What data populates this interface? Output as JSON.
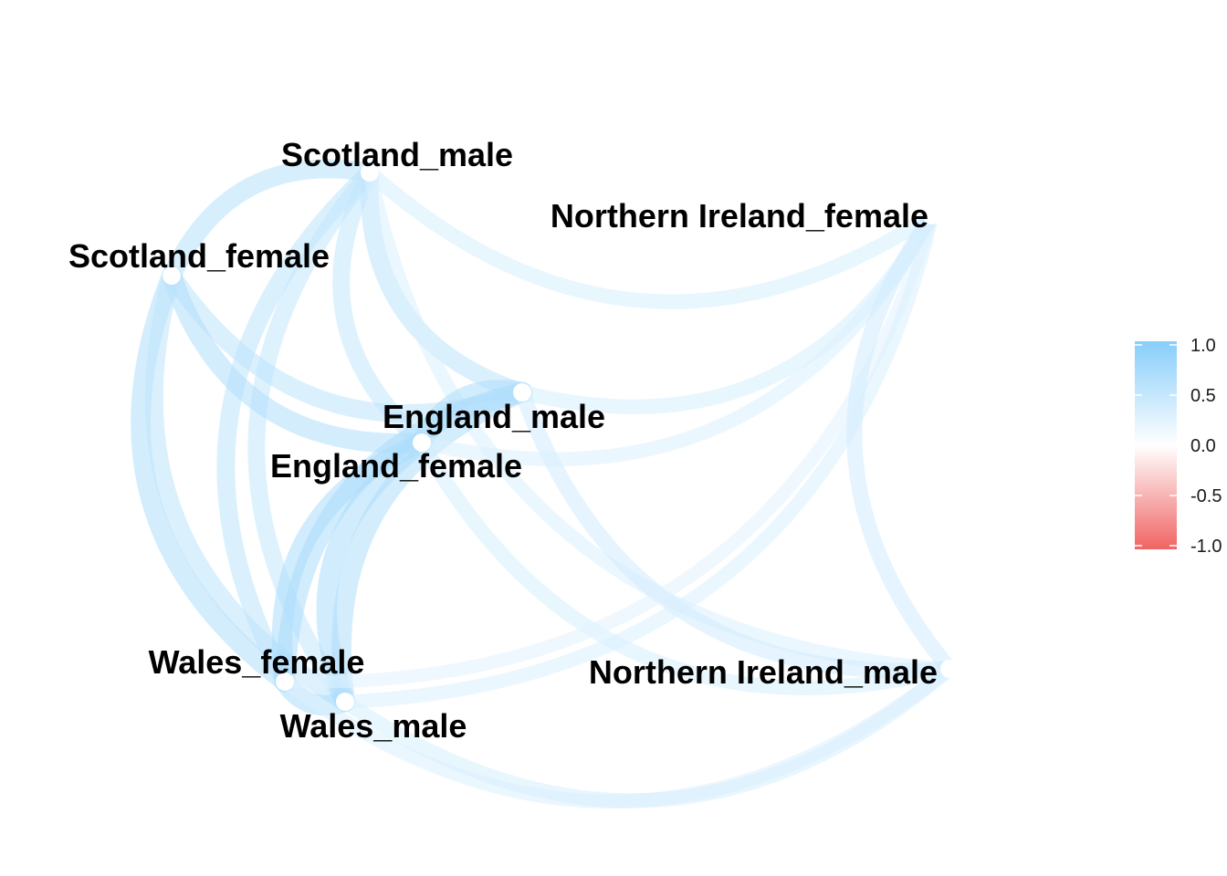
{
  "chart_data": {
    "type": "network",
    "title": "",
    "nodes": [
      {
        "id": "Scotland_male",
        "label": "Scotland_male"
      },
      {
        "id": "Scotland_female",
        "label": "Scotland_female"
      },
      {
        "id": "Northern Ireland_female",
        "label": "Northern Ireland_female"
      },
      {
        "id": "England_male",
        "label": "England_male"
      },
      {
        "id": "England_female",
        "label": "England_female"
      },
      {
        "id": "Wales_female",
        "label": "Wales_female"
      },
      {
        "id": "Wales_male",
        "label": "Wales_male"
      },
      {
        "id": "Northern Ireland_male",
        "label": "Northern Ireland_male"
      }
    ],
    "edges": [
      {
        "source": "Scotland_male",
        "target": "Scotland_female",
        "value": 0.6
      },
      {
        "source": "Scotland_male",
        "target": "England_male",
        "value": 0.55
      },
      {
        "source": "Scotland_male",
        "target": "England_female",
        "value": 0.5
      },
      {
        "source": "Scotland_male",
        "target": "Wales_female",
        "value": 0.55
      },
      {
        "source": "Scotland_male",
        "target": "Wales_male",
        "value": 0.5
      },
      {
        "source": "Scotland_male",
        "target": "Northern Ireland_female",
        "value": 0.35
      },
      {
        "source": "Scotland_male",
        "target": "Northern Ireland_male",
        "value": 0.3
      },
      {
        "source": "Scotland_female",
        "target": "England_male",
        "value": 0.55
      },
      {
        "source": "Scotland_female",
        "target": "England_female",
        "value": 0.65
      },
      {
        "source": "Scotland_female",
        "target": "Wales_female",
        "value": 0.65
      },
      {
        "source": "Scotland_female",
        "target": "Wales_male",
        "value": 0.55
      },
      {
        "source": "England_male",
        "target": "England_female",
        "value": 0.7
      },
      {
        "source": "England_male",
        "target": "Wales_female",
        "value": 0.7
      },
      {
        "source": "England_male",
        "target": "Wales_male",
        "value": 0.65
      },
      {
        "source": "England_male",
        "target": "Northern Ireland_female",
        "value": 0.35
      },
      {
        "source": "England_male",
        "target": "Northern Ireland_male",
        "value": 0.4
      },
      {
        "source": "England_female",
        "target": "Wales_female",
        "value": 0.7
      },
      {
        "source": "England_female",
        "target": "Wales_male",
        "value": 0.7
      },
      {
        "source": "England_female",
        "target": "Northern Ireland_female",
        "value": 0.3
      },
      {
        "source": "England_female",
        "target": "Northern Ireland_male",
        "value": 0.35
      },
      {
        "source": "Wales_female",
        "target": "Wales_male",
        "value": 0.7
      },
      {
        "source": "Wales_female",
        "target": "Northern Ireland_female",
        "value": 0.25
      },
      {
        "source": "Wales_female",
        "target": "Northern Ireland_male",
        "value": 0.3
      },
      {
        "source": "Wales_male",
        "target": "Northern Ireland_male",
        "value": 0.35
      },
      {
        "source": "Wales_male",
        "target": "Northern Ireland_female",
        "value": 0.3
      },
      {
        "source": "Northern Ireland_female",
        "target": "Northern Ireland_male",
        "value": 0.4
      }
    ],
    "legend": {
      "position": "right",
      "ticks": [
        "1.0",
        "0.5",
        "0.0",
        "-0.5",
        "-1.0"
      ],
      "range": [
        -1,
        1
      ],
      "colors": {
        "negative": "#f06464",
        "zero": "#ffffff",
        "positive": "#87cefa"
      }
    },
    "grid": false
  }
}
